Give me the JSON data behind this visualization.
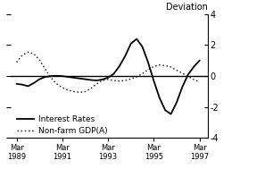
{
  "ylabel_right": "Deviation",
  "xlim_start": 1989.0,
  "xlim_end": 1997.6,
  "ylim": [
    -4,
    4
  ],
  "yticks": [
    -4,
    -2,
    0,
    2,
    4
  ],
  "yticklabels": [
    "-4",
    "-2",
    "0",
    "2",
    "4"
  ],
  "xticks": [
    1989.25,
    1991.25,
    1993.25,
    1995.25,
    1997.25
  ],
  "xticklabels": [
    "Mar\n1989",
    "Mar\n1991",
    "Mar\n1993",
    "Mar\n1995",
    "Mar\n1997"
  ],
  "interest_rates_x": [
    1989.25,
    1989.5,
    1989.75,
    1990.0,
    1990.25,
    1990.5,
    1990.75,
    1991.0,
    1991.25,
    1991.5,
    1991.75,
    1992.0,
    1992.25,
    1992.5,
    1992.75,
    1993.0,
    1993.25,
    1993.5,
    1993.75,
    1994.0,
    1994.25,
    1994.5,
    1994.75,
    1995.0,
    1995.25,
    1995.5,
    1995.75,
    1996.0,
    1996.25,
    1996.5,
    1996.75,
    1997.0,
    1997.25
  ],
  "interest_rates_y": [
    -0.5,
    -0.55,
    -0.65,
    -0.45,
    -0.2,
    -0.05,
    0.0,
    0.02,
    0.0,
    -0.05,
    -0.1,
    -0.15,
    -0.2,
    -0.25,
    -0.28,
    -0.22,
    -0.1,
    0.15,
    0.65,
    1.3,
    2.1,
    2.4,
    1.9,
    0.9,
    -0.3,
    -1.4,
    -2.2,
    -2.45,
    -1.7,
    -0.7,
    0.1,
    0.6,
    1.0
  ],
  "nonfarm_gdp_x": [
    1989.25,
    1989.5,
    1989.75,
    1990.0,
    1990.25,
    1990.5,
    1990.75,
    1991.0,
    1991.25,
    1991.5,
    1991.75,
    1992.0,
    1992.25,
    1992.5,
    1992.75,
    1993.0,
    1993.25,
    1993.5,
    1993.75,
    1994.0,
    1994.25,
    1994.5,
    1994.75,
    1995.0,
    1995.25,
    1995.5,
    1995.75,
    1996.0,
    1996.25,
    1996.5,
    1996.75,
    1997.0,
    1997.25
  ],
  "nonfarm_gdp_y": [
    0.9,
    1.35,
    1.55,
    1.45,
    1.05,
    0.45,
    -0.1,
    -0.5,
    -0.75,
    -0.9,
    -1.0,
    -1.05,
    -1.0,
    -0.8,
    -0.5,
    -0.28,
    -0.22,
    -0.28,
    -0.32,
    -0.28,
    -0.18,
    -0.05,
    0.15,
    0.42,
    0.62,
    0.72,
    0.68,
    0.58,
    0.38,
    0.18,
    -0.02,
    -0.22,
    -0.38
  ],
  "line_color": "#000000",
  "legend_interest": "Interest Rates",
  "legend_nonfarm": "Non-farm GDP(A)",
  "background_color": "#ffffff",
  "interest_linewidth": 1.3,
  "nonfarm_linewidth": 1.0
}
